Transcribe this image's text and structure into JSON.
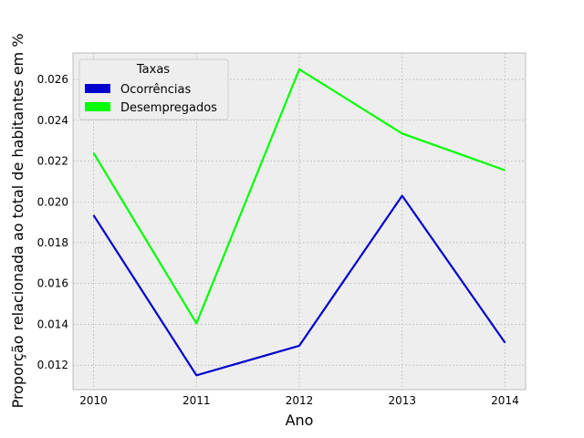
{
  "chart_data": {
    "type": "line",
    "title": "",
    "xlabel": "Ano",
    "ylabel": "Proporção relacionada ao total de habitantes em %",
    "x": [
      2010,
      2011,
      2012,
      2013,
      2014
    ],
    "x_tick_labels": [
      "2010",
      "2011",
      "2012",
      "2013",
      "2014"
    ],
    "xlim": [
      2009.8,
      2014.2
    ],
    "ylim": [
      0.0108,
      0.0273
    ],
    "y_ticks": [
      0.012,
      0.014,
      0.016,
      0.018,
      0.02,
      0.022,
      0.024,
      0.026
    ],
    "y_tick_labels": [
      "0.012",
      "0.014",
      "0.016",
      "0.018",
      "0.020",
      "0.022",
      "0.024",
      "0.026"
    ],
    "grid": true,
    "legend": {
      "title": "Taxas",
      "placement": "top-left"
    },
    "series": [
      {
        "name": "Ocorrências",
        "color": "#0000cc",
        "values": [
          0.01935,
          0.0115,
          0.01295,
          0.0203,
          0.0131
        ]
      },
      {
        "name": "Desempregados",
        "color": "#00ff00",
        "values": [
          0.0224,
          0.01405,
          0.0265,
          0.02335,
          0.02155
        ]
      }
    ]
  },
  "colors": {
    "plot_background": "#eeeeee",
    "grid": "#b0b0b0",
    "frame": "#bcbcbc"
  }
}
